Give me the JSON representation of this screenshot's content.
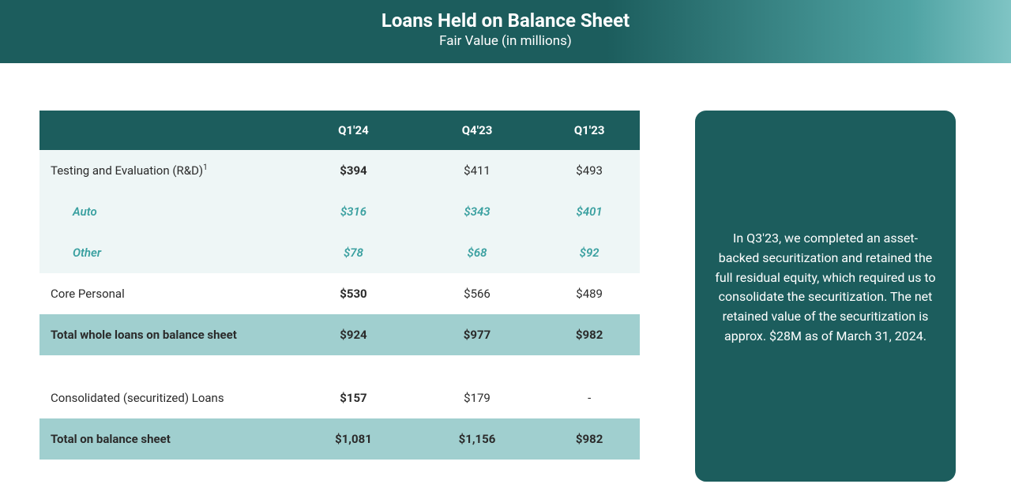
{
  "header": {
    "title": "Loans Held on Balance Sheet",
    "subtitle": "Fair Value (in millions)"
  },
  "table": {
    "columns": [
      "",
      "Q1'24",
      "Q4'23",
      "Q1'23"
    ],
    "rows": [
      {
        "type": "light",
        "bold_first_val": true,
        "label": "Testing and Evaluation (R&D)",
        "sup": "1",
        "values": [
          "$394",
          "$411",
          "$493"
        ]
      },
      {
        "type": "sub",
        "label": "Auto",
        "values": [
          "$316",
          "$343",
          "$401"
        ]
      },
      {
        "type": "sub",
        "label": "Other",
        "values": [
          "$78",
          "$68",
          "$92"
        ]
      },
      {
        "type": "white",
        "bold_first_val": true,
        "label": "Core Personal",
        "values": [
          "$530",
          "$566",
          "$489"
        ]
      },
      {
        "type": "total",
        "label": "Total whole loans on balance sheet",
        "values": [
          "$924",
          "$977",
          "$982"
        ]
      },
      {
        "type": "spacer"
      },
      {
        "type": "white",
        "bold_first_val": true,
        "label": "Consolidated (securitized) Loans",
        "values": [
          "$157",
          "$179",
          "-"
        ]
      },
      {
        "type": "total",
        "label": "Total on balance sheet",
        "values": [
          "$1,081",
          "$1,156",
          "$982"
        ]
      }
    ]
  },
  "sidebar": {
    "text": "In Q3'23, we completed an asset-backed securitization and retained the full residual equity, which required us to consolidate the securitization. The net retained value of the securitization is approx. $28M as of March 31, 2024."
  },
  "colors": {
    "teal_dark": "#1c5d5d",
    "teal_light": "#a0cfcf",
    "teal_faint": "#eef6f6",
    "teal_text": "#3aa0a0",
    "white": "#ffffff"
  }
}
